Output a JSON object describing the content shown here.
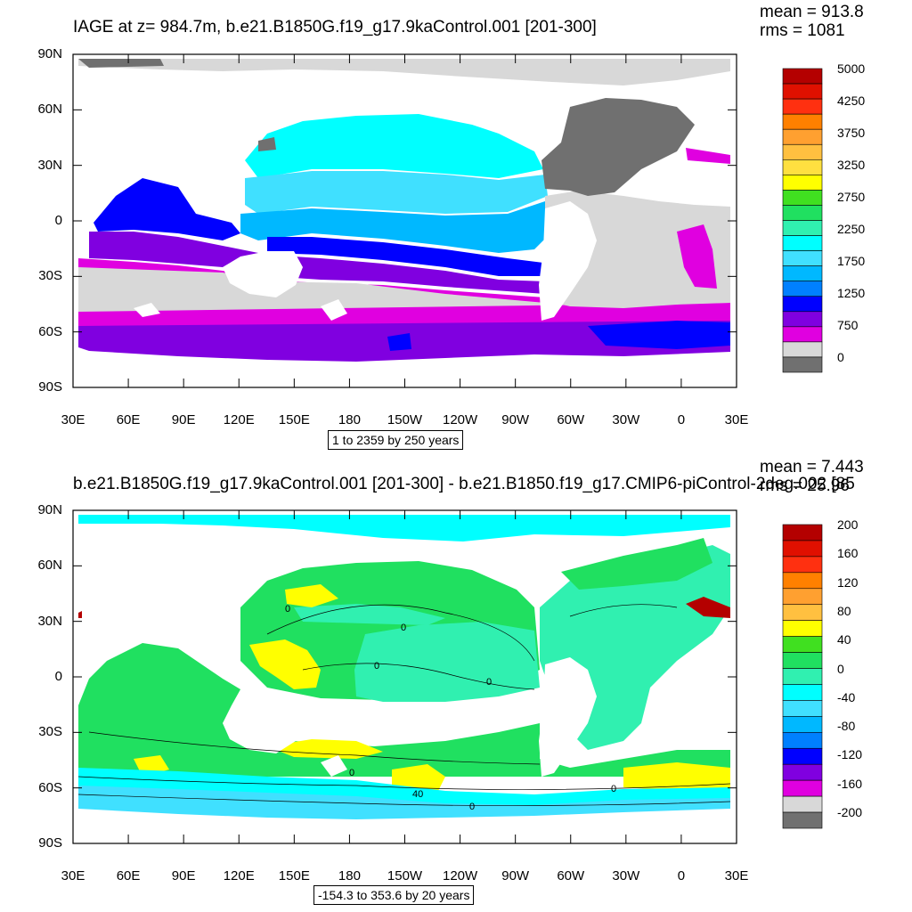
{
  "top": {
    "title": "IAGE at z= 984.7m, b.e21.B1850G.f19_g17.9kaControl.001 [201-300]",
    "stats_mean": "mean = 913.8",
    "stats_rms": "rms = 1081",
    "caption": "1 to 2359 by 250 years",
    "lat_labels": [
      "90N",
      "60N",
      "30N",
      "0",
      "30S",
      "60S",
      "90S"
    ],
    "lon_labels": [
      "30E",
      "60E",
      "90E",
      "120E",
      "150E",
      "180",
      "150W",
      "120W",
      "90W",
      "60W",
      "30W",
      "0",
      "30E"
    ],
    "colorbar_colors": [
      "#b40000",
      "#e01000",
      "#ff3010",
      "#ff8000",
      "#ffa030",
      "#ffc040",
      "#ffe040",
      "#ffff00",
      "#40e020",
      "#20e060",
      "#30f0b0",
      "#00ffff",
      "#40e0ff",
      "#00b8ff",
      "#0080ff",
      "#0000ff",
      "#8000e0",
      "#e000e0",
      "#d8d8d8",
      "#707070"
    ],
    "colorbar_labels": [
      "5000",
      "4250",
      "3750",
      "3250",
      "2750",
      "2250",
      "1750",
      "1250",
      "750",
      "0"
    ]
  },
  "bottom": {
    "title": "b.e21.B1850G.f19_g17.9kaControl.001 [201-300] - b.e21.B1850.f19_g17.CMIP6-piControl-2deg.002 [85",
    "stats_mean": "mean = 7.443",
    "stats_rms": "rms = 25.96",
    "caption": "-154.3 to 353.6 by 20 years",
    "lat_labels": [
      "90N",
      "60N",
      "30N",
      "0",
      "30S",
      "60S",
      "90S"
    ],
    "lon_labels": [
      "30E",
      "60E",
      "90E",
      "120E",
      "150E",
      "180",
      "150W",
      "120W",
      "90W",
      "60W",
      "30W",
      "0",
      "30E"
    ],
    "colorbar_colors": [
      "#b40000",
      "#e01000",
      "#ff3010",
      "#ff8000",
      "#ffa030",
      "#ffc040",
      "#ffff00",
      "#40e020",
      "#20e060",
      "#30f0b0",
      "#00ffff",
      "#40e0ff",
      "#00b8ff",
      "#0080ff",
      "#0000ff",
      "#8000e0",
      "#e000e0",
      "#d8d8d8",
      "#707070"
    ],
    "colorbar_labels": [
      "200",
      "160",
      "120",
      "80",
      "40",
      "0",
      "-40",
      "-80",
      "-120",
      "-160",
      "-200"
    ],
    "contour_labels": [
      "0",
      "0",
      "0",
      "0",
      "0",
      "0",
      "40",
      "0"
    ]
  }
}
